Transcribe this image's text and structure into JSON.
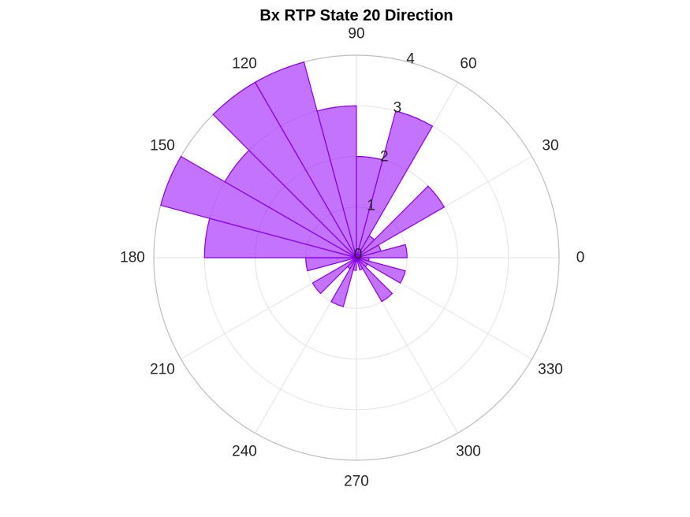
{
  "chart_data": {
    "type": "polar-histogram",
    "title": "Bx  RTP State 20 Direction",
    "bin_width_deg": 15,
    "bins": [
      {
        "start": 0,
        "end": 15,
        "value": 1
      },
      {
        "start": 15,
        "end": 30,
        "value": 0.5
      },
      {
        "start": 30,
        "end": 45,
        "value": 2
      },
      {
        "start": 45,
        "end": 60,
        "value": 0.5
      },
      {
        "start": 60,
        "end": 75,
        "value": 3
      },
      {
        "start": 75,
        "end": 90,
        "value": 2
      },
      {
        "start": 90,
        "end": 105,
        "value": 3
      },
      {
        "start": 105,
        "end": 120,
        "value": 4
      },
      {
        "start": 120,
        "end": 135,
        "value": 4
      },
      {
        "start": 135,
        "end": 150,
        "value": 3
      },
      {
        "start": 150,
        "end": 165,
        "value": 4
      },
      {
        "start": 165,
        "end": 180,
        "value": 3
      },
      {
        "start": 180,
        "end": 195,
        "value": 1
      },
      {
        "start": 195,
        "end": 210,
        "value": 0
      },
      {
        "start": 210,
        "end": 225,
        "value": 1
      },
      {
        "start": 225,
        "end": 240,
        "value": 0.25
      },
      {
        "start": 240,
        "end": 255,
        "value": 1
      },
      {
        "start": 255,
        "end": 270,
        "value": 0.25
      },
      {
        "start": 270,
        "end": 285,
        "value": 0
      },
      {
        "start": 285,
        "end": 300,
        "value": 0.25
      },
      {
        "start": 300,
        "end": 315,
        "value": 1
      },
      {
        "start": 315,
        "end": 330,
        "value": 0.25
      },
      {
        "start": 330,
        "end": 345,
        "value": 1
      },
      {
        "start": 345,
        "end": 360,
        "value": 0.25
      }
    ],
    "rlim": [
      0,
      4
    ],
    "r_ticks": [
      "0",
      "1",
      "2",
      "3",
      "4"
    ],
    "theta_ticks": [
      "0",
      "30",
      "60",
      "90",
      "120",
      "150",
      "180",
      "210",
      "240",
      "270",
      "300",
      "330"
    ],
    "grid": true,
    "colors": {
      "fill": "#9400ff",
      "edge": "#8a00e6",
      "grid": "#e3e3e3",
      "outer": "#bdbdbd"
    }
  }
}
